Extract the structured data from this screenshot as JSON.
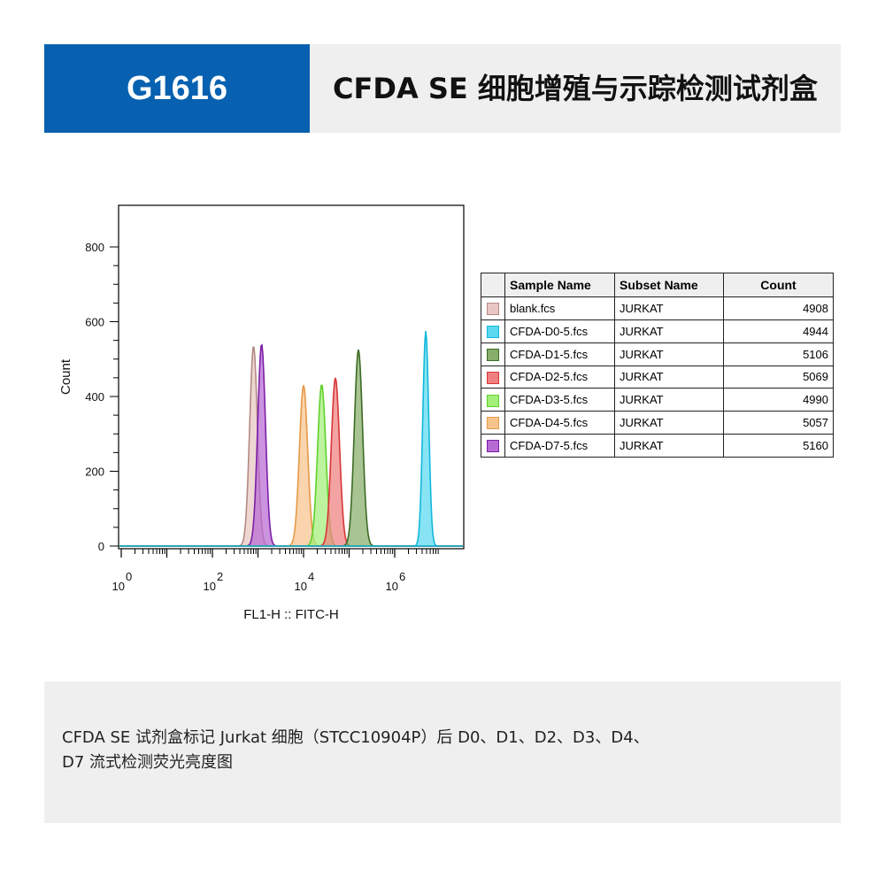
{
  "header": {
    "code": "G1616",
    "title_line1": "CFDA SE 细胞增殖与示踪检测",
    "title_line2": "试剂盒"
  },
  "chart_data": {
    "type": "area",
    "title": "",
    "xlabel": "FL1-H :: FITC-H",
    "ylabel": "Count",
    "x_scale": "log",
    "xlim": [
      1,
      10000000
    ],
    "ylim": [
      0,
      900
    ],
    "y_ticks": [
      0,
      200,
      400,
      600,
      800
    ],
    "x_ticks": [
      {
        "base": "10",
        "exp": "0",
        "value": 1
      },
      {
        "base": "10",
        "exp": "2",
        "value": 100
      },
      {
        "base": "10",
        "exp": "4",
        "value": 10000
      },
      {
        "base": "10",
        "exp": "6",
        "value": 1000000
      }
    ],
    "series": [
      {
        "name": "blank.fcs",
        "peak_x": 800,
        "peak_y": 535,
        "width_decades": 0.085,
        "fill": "#e8c7c2",
        "stroke": "#b48a84"
      },
      {
        "name": "CFDA-D0-5.fcs",
        "peak_x": 4800000,
        "peak_y": 575,
        "width_decades": 0.065,
        "fill": "#5ad9f0",
        "stroke": "#12b8dc"
      },
      {
        "name": "CFDA-D1-5.fcs",
        "peak_x": 160000,
        "peak_y": 525,
        "width_decades": 0.09,
        "fill": "#86ad6a",
        "stroke": "#3d6b25"
      },
      {
        "name": "CFDA-D2-5.fcs",
        "peak_x": 50000,
        "peak_y": 450,
        "width_decades": 0.09,
        "fill": "#f08080",
        "stroke": "#d63636"
      },
      {
        "name": "CFDA-D3-5.fcs",
        "peak_x": 25000,
        "peak_y": 432,
        "width_decades": 0.09,
        "fill": "#a3ef7a",
        "stroke": "#5fd12b"
      },
      {
        "name": "CFDA-D4-5.fcs",
        "peak_x": 10000,
        "peak_y": 430,
        "width_decades": 0.09,
        "fill": "#f7c48d",
        "stroke": "#e59a48"
      },
      {
        "name": "CFDA-D7-5.fcs",
        "peak_x": 1200,
        "peak_y": 540,
        "width_decades": 0.085,
        "fill": "#b86ad4",
        "stroke": "#7d1fa6"
      }
    ]
  },
  "legend_table": {
    "headers": {
      "name": "Sample Name",
      "subset": "Subset Name",
      "count": "Count"
    },
    "rows": [
      {
        "name": "blank.fcs",
        "subset": "JURKAT",
        "count": "4908",
        "fill": "#e8c7c2",
        "stroke": "#b48a84"
      },
      {
        "name": "CFDA-D0-5.fcs",
        "subset": "JURKAT",
        "count": "4944",
        "fill": "#5ad9f0",
        "stroke": "#12b8dc"
      },
      {
        "name": "CFDA-D1-5.fcs",
        "subset": "JURKAT",
        "count": "5106",
        "fill": "#86ad6a",
        "stroke": "#3d6b25"
      },
      {
        "name": "CFDA-D2-5.fcs",
        "subset": "JURKAT",
        "count": "5069",
        "fill": "#f08080",
        "stroke": "#d63636"
      },
      {
        "name": "CFDA-D3-5.fcs",
        "subset": "JURKAT",
        "count": "4990",
        "fill": "#a3ef7a",
        "stroke": "#5fd12b"
      },
      {
        "name": "CFDA-D4-5.fcs",
        "subset": "JURKAT",
        "count": "5057",
        "fill": "#f7c48d",
        "stroke": "#e59a48"
      },
      {
        "name": "CFDA-D7-5.fcs",
        "subset": "JURKAT",
        "count": "5160",
        "fill": "#b86ad4",
        "stroke": "#7d1fa6"
      }
    ]
  },
  "caption": {
    "line1": "CFDA SE 试剂盒标记 Jurkat 细胞（STCC10904P）后 D0、D1、D2、D3、D4、",
    "line2": "D7 流式检测荧光亮度图"
  }
}
